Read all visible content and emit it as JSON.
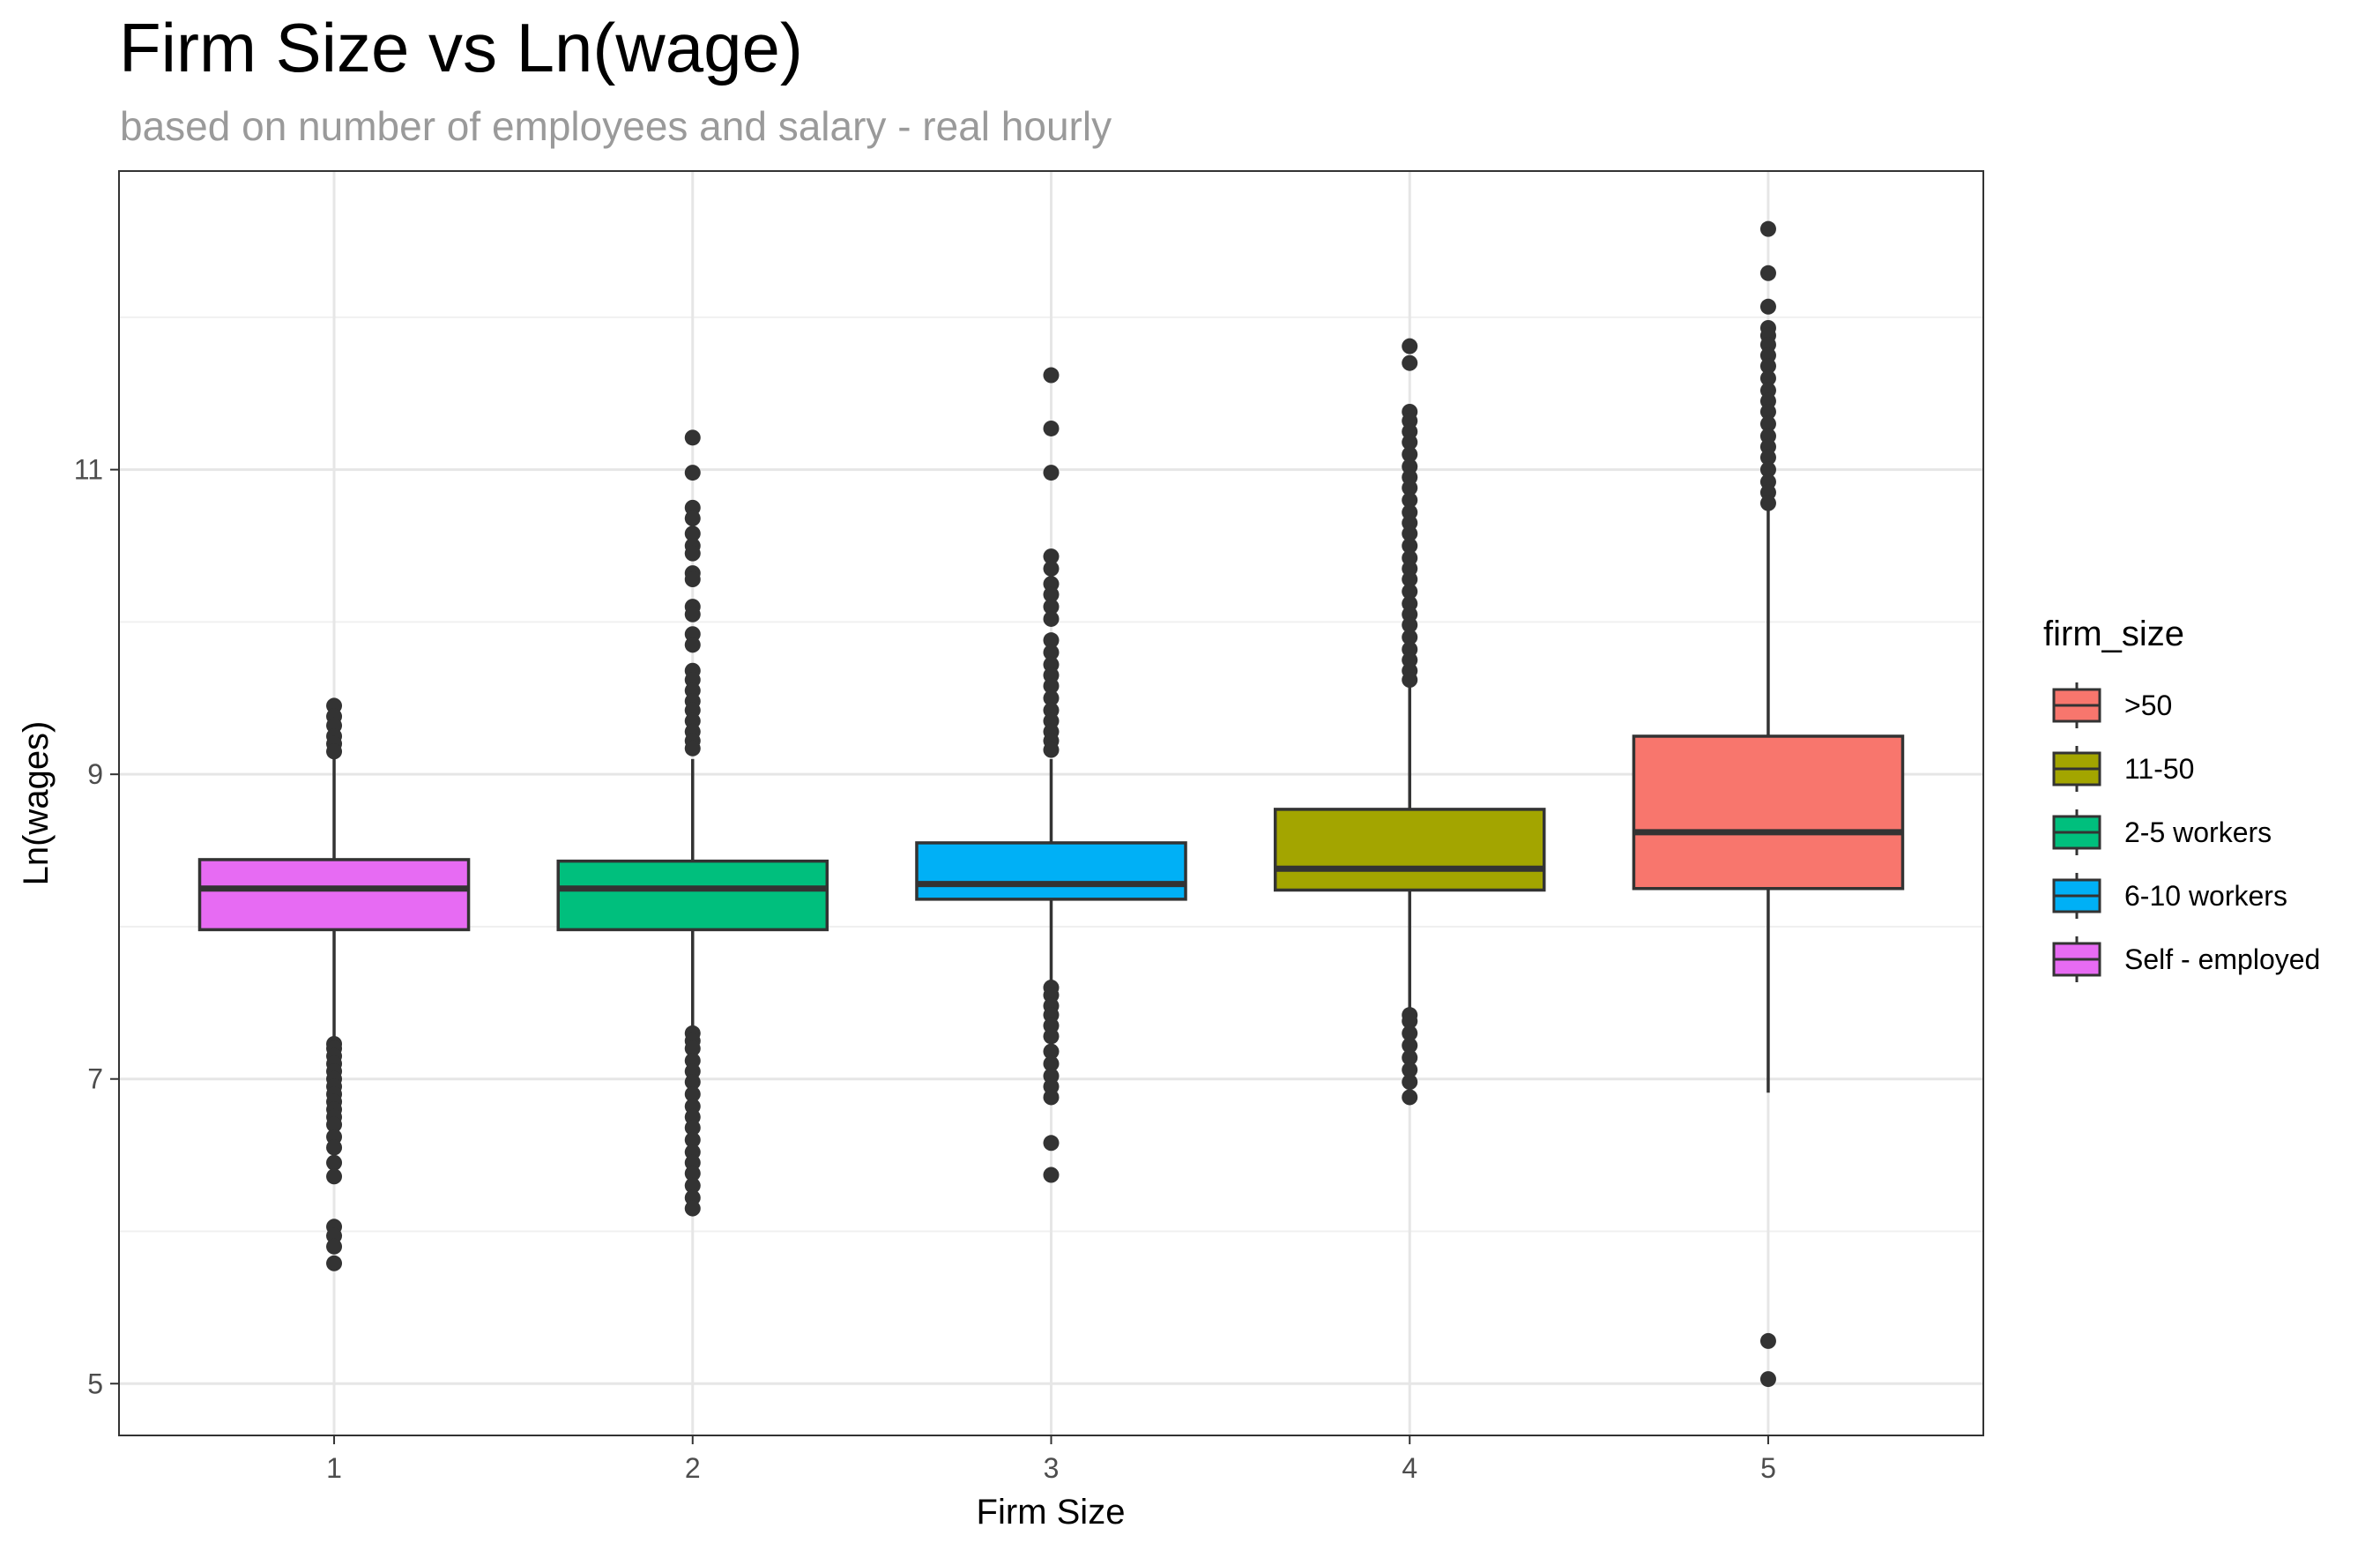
{
  "chart_data": {
    "type": "box",
    "title": "Firm Size vs Ln(wage)",
    "subtitle": "based on number of employees and salary - real hourly",
    "xlabel": "Firm Size",
    "ylabel": "Ln(wages)",
    "ylim": [
      4.66,
      12.96
    ],
    "y_ticks": [
      5,
      7,
      9,
      11
    ],
    "y_minor_ticks": [
      6,
      8,
      10,
      12
    ],
    "grid": true,
    "legend": {
      "title": "firm_size",
      "position": "right",
      "entries": [
        {
          "label": ">50",
          "color": "#F8766D"
        },
        {
          "label": "11-50",
          "color": "#A3A500"
        },
        {
          "label": "2-5 workers",
          "color": "#00BF7D"
        },
        {
          "label": "6-10 workers",
          "color": "#00B0F6"
        },
        {
          "label": "Self - employed",
          "color": "#E76BF3"
        }
      ]
    },
    "series": [
      {
        "x": "1",
        "group": "Self - employed",
        "color": "#E76BF3",
        "lower_whisker": 7.25,
        "q1": 7.98,
        "median": 8.25,
        "q3": 8.44,
        "upper_whisker": 9.12,
        "outliers": [
          9.45,
          9.38,
          9.32,
          9.25,
          9.2,
          9.15,
          7.23,
          7.2,
          7.15,
          7.1,
          7.05,
          7.0,
          6.95,
          6.9,
          6.85,
          6.8,
          6.75,
          6.7,
          6.62,
          6.55,
          6.45,
          6.36,
          6.03,
          5.97,
          5.9,
          5.79
        ]
      },
      {
        "x": "2",
        "group": "2-5 workers",
        "color": "#00BF7D",
        "lower_whisker": 7.28,
        "q1": 7.98,
        "median": 8.25,
        "q3": 8.43,
        "upper_whisker": 9.1,
        "outliers": [
          11.21,
          10.98,
          10.75,
          10.68,
          10.58,
          10.5,
          10.45,
          10.32,
          10.28,
          10.1,
          10.05,
          9.92,
          9.85,
          9.68,
          9.62,
          9.55,
          9.48,
          9.42,
          9.35,
          9.28,
          9.22,
          9.17,
          7.3,
          7.25,
          7.2,
          7.12,
          7.05,
          6.98,
          6.9,
          6.82,
          6.75,
          6.68,
          6.6,
          6.52,
          6.45,
          6.38,
          6.3,
          6.22,
          6.15
        ]
      },
      {
        "x": "3",
        "group": "6-10 workers",
        "color": "#00B0F6",
        "lower_whisker": 7.62,
        "q1": 8.18,
        "median": 8.28,
        "q3": 8.55,
        "upper_whisker": 9.1,
        "outliers": [
          11.62,
          11.27,
          10.98,
          10.43,
          10.35,
          10.25,
          10.18,
          10.1,
          10.02,
          9.88,
          9.8,
          9.72,
          9.65,
          9.58,
          9.5,
          9.42,
          9.35,
          9.28,
          9.22,
          9.16,
          7.6,
          7.55,
          7.48,
          7.42,
          7.35,
          7.28,
          7.18,
          7.1,
          7.02,
          6.95,
          6.88,
          6.58,
          6.37
        ]
      },
      {
        "x": "4",
        "group": "11-50",
        "color": "#A3A500",
        "lower_whisker": 7.45,
        "q1": 8.24,
        "median": 8.38,
        "q3": 8.77,
        "upper_whisker": 9.58,
        "outliers": [
          11.81,
          11.7,
          11.38,
          11.32,
          11.25,
          11.18,
          11.1,
          11.02,
          10.95,
          10.88,
          10.8,
          10.72,
          10.65,
          10.58,
          10.5,
          10.42,
          10.35,
          10.28,
          10.2,
          10.12,
          10.05,
          9.98,
          9.9,
          9.82,
          9.75,
          9.68,
          9.62,
          7.42,
          7.38,
          7.3,
          7.22,
          7.14,
          7.06,
          6.98,
          6.88
        ]
      },
      {
        "x": "5",
        "group": ">50",
        "color": "#F8766D",
        "lower_whisker": 6.91,
        "q1": 8.25,
        "median": 8.62,
        "q3": 9.25,
        "upper_whisker": 10.74,
        "outliers": [
          12.58,
          12.29,
          12.07,
          11.93,
          11.88,
          11.82,
          11.75,
          11.68,
          11.6,
          11.52,
          11.45,
          11.38,
          11.3,
          11.22,
          11.15,
          11.08,
          11.0,
          10.92,
          10.85,
          10.78,
          5.28,
          5.03
        ]
      }
    ]
  }
}
